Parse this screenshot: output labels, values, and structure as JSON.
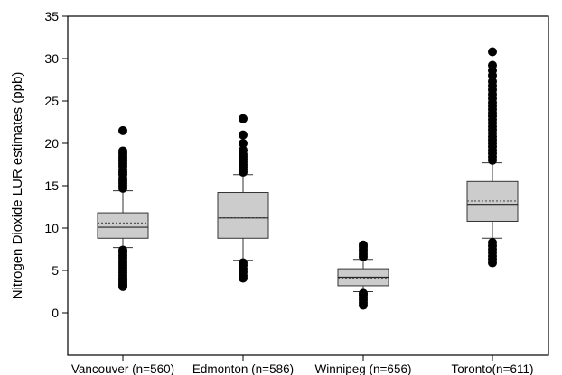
{
  "chart_data": {
    "type": "box",
    "title": "",
    "xlabel": "",
    "ylabel": "Nitrogen Dioxide LUR estimates (ppb)",
    "ylim": [
      -5,
      35
    ],
    "yticks": [
      0,
      5,
      10,
      15,
      20,
      25,
      30,
      35
    ],
    "grid": false,
    "legend": "none",
    "colors": {
      "box_fill": "#cccccc",
      "box_stroke": "#333333",
      "outlier": "#000000",
      "mean_line": "#555555"
    },
    "categories": [
      "Vancouver (n=560)",
      "Edmonton (n=586)",
      "Winnipeg (n=656)",
      "Toronto(n=611)"
    ],
    "boxes": [
      {
        "category": "Vancouver (n=560)",
        "whisker_low": 7.7,
        "q1": 8.8,
        "median": 10.1,
        "mean": 10.6,
        "q3": 11.8,
        "whisker_high": 14.4,
        "outliers_low": [
          3.1,
          3.3,
          3.5,
          3.7,
          3.9,
          4.1,
          4.4,
          4.7,
          5.0,
          5.3,
          5.6,
          5.9,
          6.2,
          6.5,
          6.8,
          7.1,
          7.4
        ],
        "outliers_high": [
          14.7,
          15.0,
          15.3,
          15.6,
          15.9,
          16.3,
          16.6,
          16.9,
          17.3,
          17.6,
          17.9,
          18.2,
          18.5,
          18.8,
          19.1,
          21.5
        ]
      },
      {
        "category": "Edmonton (n=586)",
        "whisker_low": 6.2,
        "q1": 8.8,
        "median": 11.2,
        "mean": 11.2,
        "q3": 14.2,
        "whisker_high": 16.3,
        "outliers_low": [
          4.1,
          4.4,
          4.8,
          5.2,
          5.6,
          5.9
        ],
        "outliers_high": [
          16.6,
          16.9,
          17.2,
          17.5,
          17.8,
          18.1,
          18.4,
          18.7,
          19.2,
          20.0,
          21.0,
          22.9
        ]
      },
      {
        "category": "Winnipeg (n=656)",
        "whisker_low": 2.5,
        "q1": 3.2,
        "median": 4.2,
        "mean": 4.1,
        "q3": 5.2,
        "whisker_high": 6.3,
        "outliers_low": [
          0.9,
          1.2,
          1.5,
          1.8,
          2.1,
          2.3
        ],
        "outliers_high": [
          6.6,
          6.9,
          7.2,
          7.5,
          7.8,
          8.0
        ]
      },
      {
        "category": "Toronto(n=611)",
        "whisker_low": 8.8,
        "q1": 10.8,
        "median": 12.8,
        "mean": 13.2,
        "q3": 15.5,
        "whisker_high": 17.7,
        "outliers_low": [
          5.9,
          6.3,
          6.7,
          7.1,
          7.5,
          7.9,
          8.3
        ],
        "outliers_high": [
          18.0,
          18.4,
          18.8,
          19.2,
          19.6,
          20.0,
          20.4,
          20.8,
          21.2,
          21.6,
          22.0,
          22.4,
          22.8,
          23.2,
          23.6,
          24.0,
          24.4,
          24.8,
          25.3,
          25.8,
          26.3,
          26.8,
          27.3,
          28.0,
          28.6,
          29.2,
          30.8
        ]
      }
    ]
  }
}
